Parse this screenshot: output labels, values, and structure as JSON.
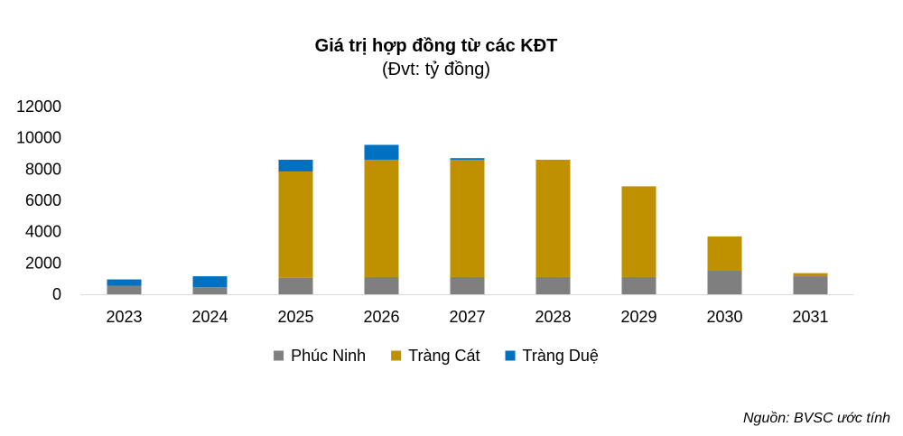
{
  "chart_data": {
    "type": "bar",
    "stacked": true,
    "title": "Giá trị hợp đồng từ các KĐT",
    "subtitle": "(Đvt: tỷ đồng)",
    "categories": [
      "2023",
      "2024",
      "2025",
      "2026",
      "2027",
      "2028",
      "2029",
      "2030",
      "2031"
    ],
    "series": [
      {
        "name": "Phúc Ninh",
        "color": "#7f7f7f",
        "values": [
          550,
          450,
          1050,
          1100,
          1100,
          1100,
          1100,
          1500,
          1150
        ]
      },
      {
        "name": "Tràng Cát",
        "color": "#bf9000",
        "values": [
          0,
          0,
          6800,
          7500,
          7500,
          7500,
          5800,
          2200,
          200
        ]
      },
      {
        "name": "Tràng Duệ",
        "color": "#0070c0",
        "values": [
          400,
          700,
          750,
          950,
          100,
          0,
          0,
          0,
          0
        ]
      }
    ],
    "ylim": [
      0,
      12000
    ],
    "yticks": [
      0,
      2000,
      4000,
      6000,
      8000,
      10000,
      12000
    ],
    "grid": false,
    "legend": "bottom"
  },
  "source": "Nguồn: BVSC ước tính"
}
